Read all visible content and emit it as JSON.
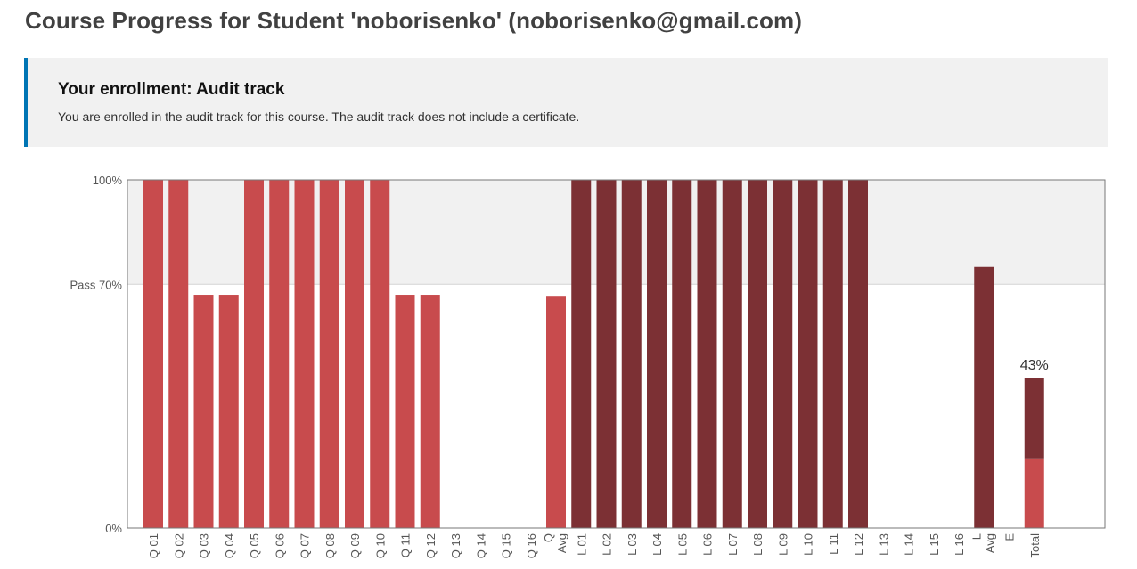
{
  "page": {
    "title": "Course Progress for Student 'noborisenko' (noborisenko@gmail.com)"
  },
  "enrollment": {
    "title": "Your enrollment: Audit track",
    "message": "You are enrolled in the audit track for this course. The audit track does not include a certificate."
  },
  "colors": {
    "quiz": "#c84b4d",
    "lab": "#7c3034",
    "pass_band": "#f1f1f1",
    "accent": "#0075b4"
  },
  "chart_data": {
    "type": "bar",
    "ylim": [
      0,
      100
    ],
    "y_ticks": [
      {
        "value": 100,
        "label": "100%"
      },
      {
        "value": 70,
        "label": "Pass 70%"
      },
      {
        "value": 0,
        "label": "0%"
      }
    ],
    "pass_threshold": 70,
    "categories": [
      "Q 01",
      "Q 02",
      "Q 03",
      "Q 04",
      "Q 05",
      "Q 06",
      "Q 07",
      "Q 08",
      "Q 09",
      "Q 10",
      "Q 11",
      "Q 12",
      "Q 13",
      "Q 14",
      "Q 15",
      "Q 16",
      "Q Avg",
      "L 01",
      "L 02",
      "L 03",
      "L 04",
      "L 05",
      "L 06",
      "L 07",
      "L 08",
      "L 09",
      "L 10",
      "L 11",
      "L 12",
      "L 13",
      "L 14",
      "L 15",
      "L 16",
      "L Avg",
      "E",
      "Total"
    ],
    "series": [
      {
        "key": "quiz",
        "values": [
          100,
          100,
          67,
          67,
          100,
          100,
          100,
          100,
          100,
          100,
          67,
          67,
          0,
          0,
          0,
          0,
          66.7,
          null,
          null,
          null,
          null,
          null,
          null,
          null,
          null,
          null,
          null,
          null,
          null,
          null,
          null,
          null,
          null,
          null,
          null,
          null
        ]
      },
      {
        "key": "lab",
        "values": [
          null,
          null,
          null,
          null,
          null,
          null,
          null,
          null,
          null,
          null,
          null,
          null,
          null,
          null,
          null,
          null,
          null,
          100,
          100,
          100,
          100,
          100,
          100,
          100,
          100,
          100,
          100,
          100,
          100,
          0,
          0,
          0,
          0,
          75,
          null,
          null
        ]
      }
    ],
    "total": {
      "quiz_part": 20,
      "lab_part": 23,
      "label": "43%"
    }
  }
}
